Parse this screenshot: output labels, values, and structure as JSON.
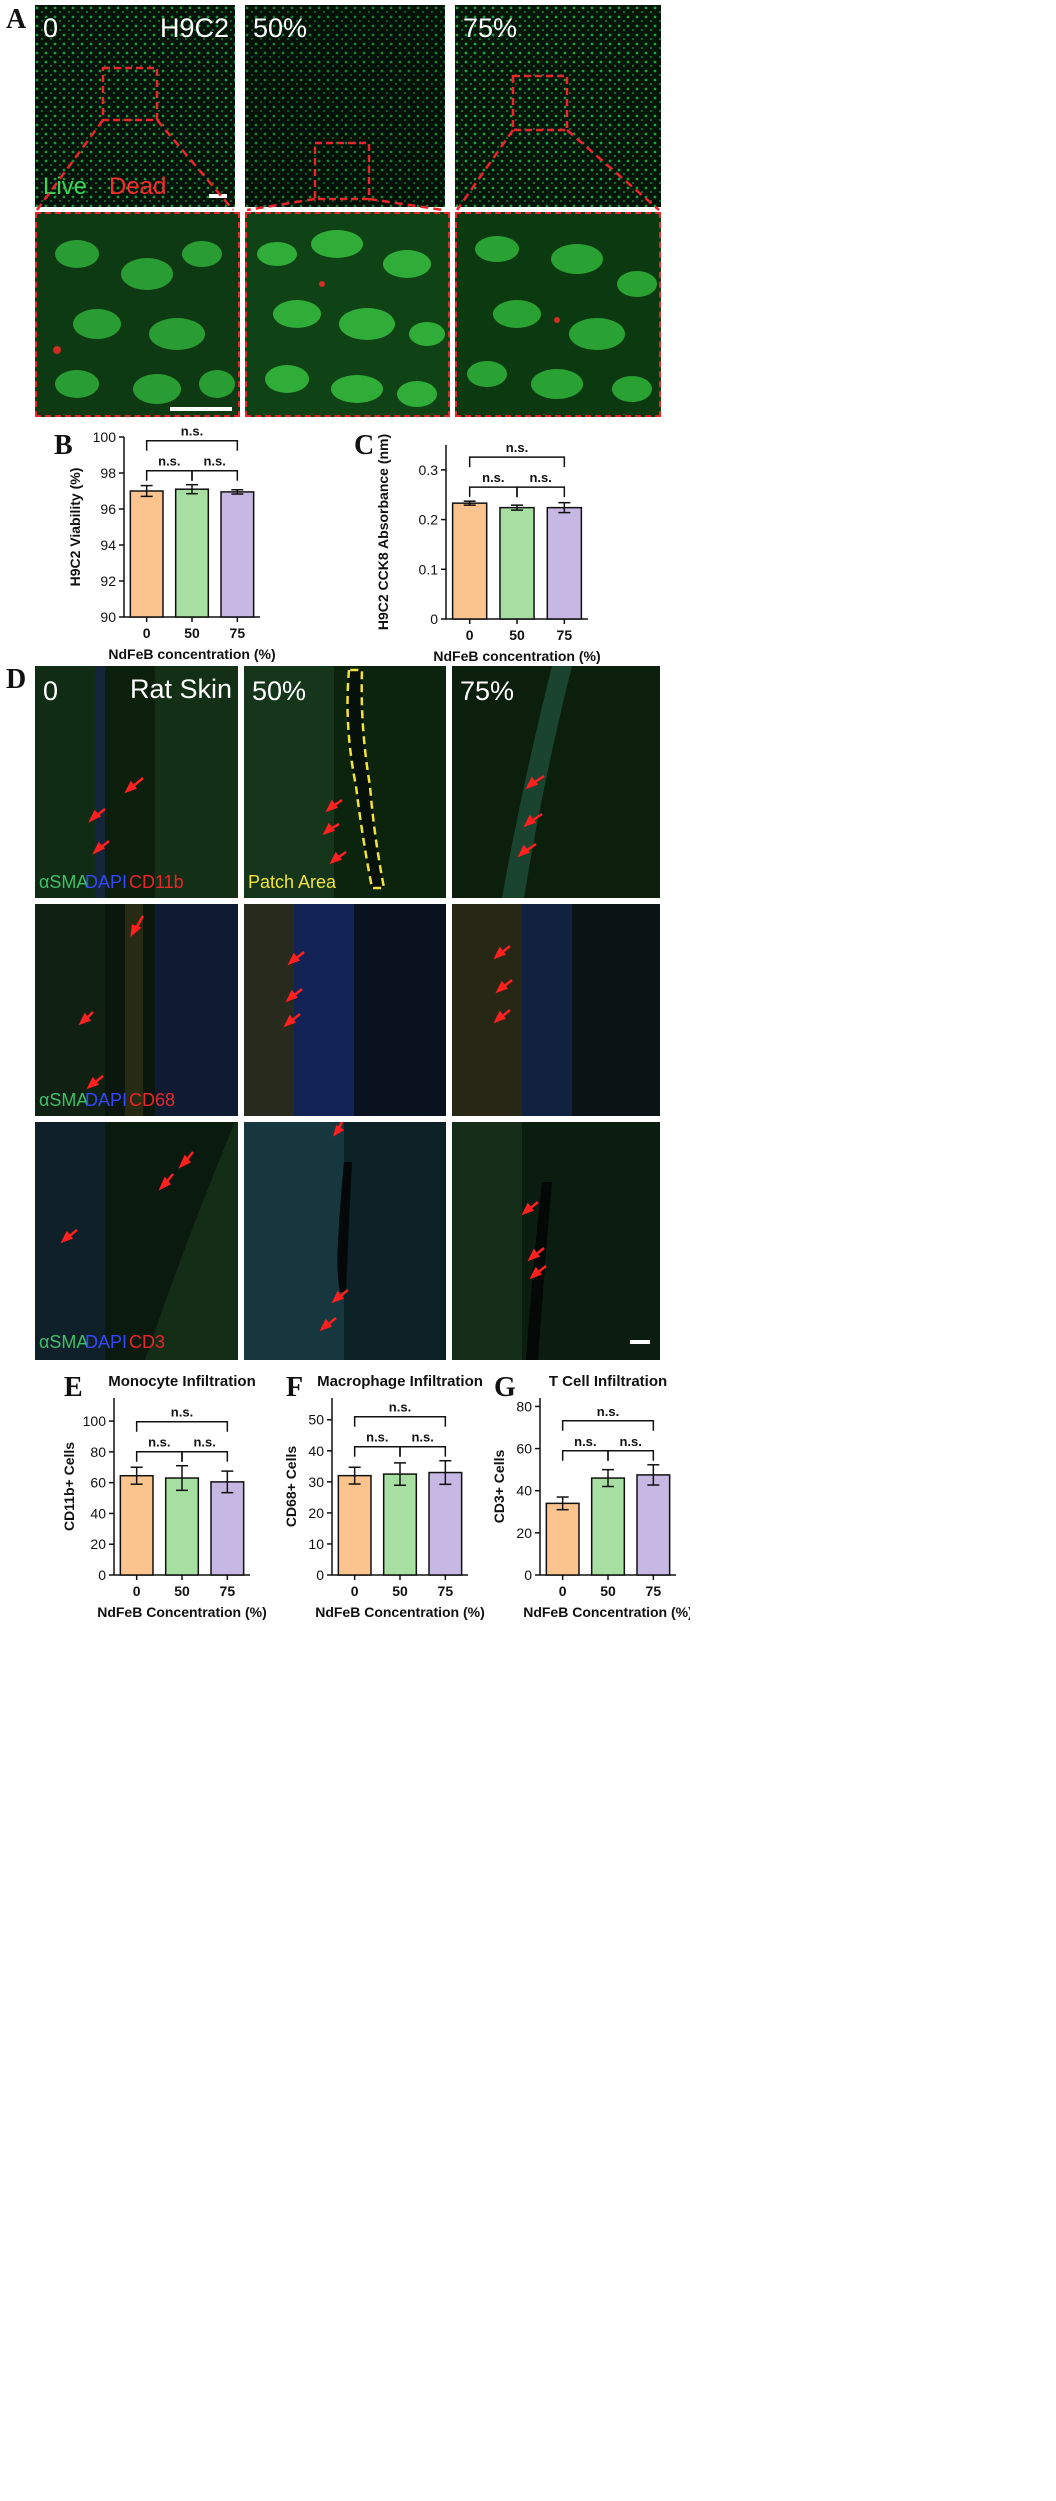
{
  "panel_labels": {
    "A": "A",
    "B": "B",
    "C": "C",
    "D": "D",
    "E": "E",
    "F": "F",
    "G": "G"
  },
  "panel_a": {
    "cell_line": "H9C2",
    "conditions": [
      "0",
      "50%",
      "75%"
    ],
    "legend_live": "Live",
    "legend_dead": "Dead",
    "colors": {
      "live": "#22cc44",
      "dead": "#ff2a2a",
      "zoom_box": "#e8262b"
    }
  },
  "panel_d": {
    "tissue": "Rat Skin",
    "conditions": [
      "0",
      "50%",
      "75%"
    ],
    "patch_area": "Patch Area",
    "rows": [
      {
        "a": "αSMA",
        "b": "DAPI",
        "c": "CD11b"
      },
      {
        "a": "αSMA",
        "b": "DAPI",
        "c": "CD68"
      },
      {
        "a": "αSMA",
        "b": "DAPI",
        "c": "CD3"
      }
    ],
    "colors": {
      "asma": "#3fbf6a",
      "dapi": "#2f43e8",
      "marker": "#e8262b",
      "arrow": "#ff2020",
      "patch": "#f2e23a"
    }
  },
  "chart_data": [
    {
      "panel": "B",
      "type": "bar",
      "categories": [
        "0",
        "50",
        "75"
      ],
      "values": [
        97.0,
        97.1,
        96.95
      ],
      "errors": [
        0.3,
        0.25,
        0.12
      ],
      "xlabel": "NdFeB concentration (%)",
      "ylabel": "H9C2 Viability (%)",
      "ylim": [
        90,
        100
      ],
      "yticks": [
        "90",
        "92",
        "94",
        "96",
        "98",
        "100"
      ],
      "significance": [
        "n.s.",
        "n.s.",
        "n.s."
      ],
      "colors": [
        "#fbc48e",
        "#a7dfa2",
        "#c6b8e2"
      ]
    },
    {
      "panel": "C",
      "type": "bar",
      "categories": [
        "0",
        "50",
        "75"
      ],
      "values": [
        0.233,
        0.224,
        0.224
      ],
      "errors": [
        0.004,
        0.005,
        0.01
      ],
      "xlabel": "NdFeB concentration (%)",
      "ylabel": "H9C2 CCK8 Absorbance (nm)",
      "ylim": [
        0,
        0.35
      ],
      "yticks": [
        "0",
        "0.1",
        "0.2",
        "0.3"
      ],
      "significance": [
        "n.s.",
        "n.s.",
        "n.s."
      ],
      "colors": [
        "#fbc48e",
        "#a7dfa2",
        "#c6b8e2"
      ]
    },
    {
      "panel": "E",
      "type": "bar",
      "title": "Monocyte Infiltration",
      "categories": [
        "0",
        "50",
        "75"
      ],
      "values": [
        64.5,
        63,
        60.5
      ],
      "errors": [
        5.5,
        8,
        7
      ],
      "xlabel": "NdFeB Concentration (%)",
      "ylabel": "CD11b+ Cells",
      "ylim": [
        0,
        115
      ],
      "yticks": [
        "0",
        "20",
        "40",
        "60",
        "80",
        "100"
      ],
      "significance": [
        "n.s.",
        "n.s.",
        "n.s."
      ],
      "colors": [
        "#fbc48e",
        "#a7dfa2",
        "#c6b8e2"
      ]
    },
    {
      "panel": "F",
      "type": "bar",
      "title": "Macrophage Infiltration",
      "categories": [
        "0",
        "50",
        "75"
      ],
      "values": [
        32,
        32.5,
        33
      ],
      "errors": [
        2.7,
        3.6,
        3.8
      ],
      "xlabel": "NdFeB Concentration (%)",
      "ylabel": "CD68+ Cells",
      "ylim": [
        0,
        57
      ],
      "yticks": [
        "0",
        "10",
        "20",
        "30",
        "40",
        "50"
      ],
      "significance": [
        "n.s.",
        "n.s.",
        "n.s."
      ],
      "colors": [
        "#fbc48e",
        "#a7dfa2",
        "#c6b8e2"
      ]
    },
    {
      "panel": "G",
      "type": "bar",
      "title": "T Cell Infiltration",
      "categories": [
        "0",
        "50",
        "75"
      ],
      "values": [
        34,
        46,
        47.5
      ],
      "errors": [
        3,
        4,
        4.8
      ],
      "xlabel": "NdFeB Concentration (%)",
      "ylabel": "CD3+ Cells",
      "ylim": [
        0,
        84
      ],
      "yticks": [
        "0",
        "20",
        "40",
        "60",
        "80"
      ],
      "significance": [
        "n.s.",
        "n.s.",
        "n.s."
      ],
      "colors": [
        "#fbc48e",
        "#a7dfa2",
        "#c6b8e2"
      ]
    }
  ]
}
